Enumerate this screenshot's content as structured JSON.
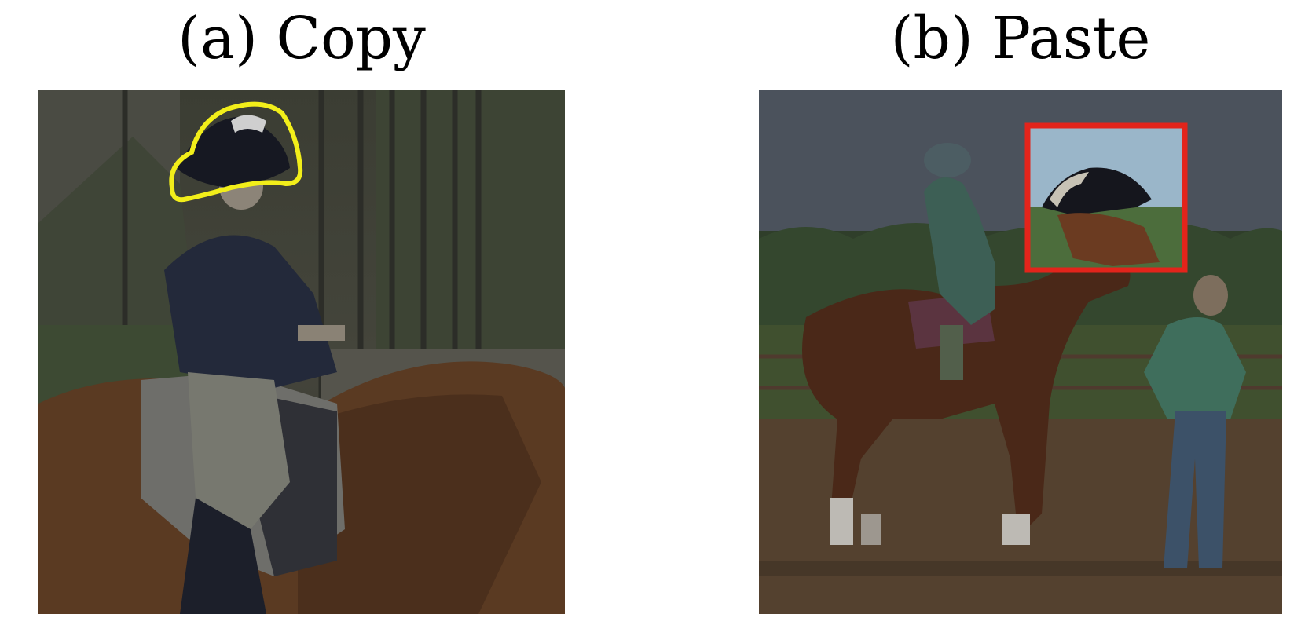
{
  "figure": {
    "panels": [
      {
        "title": "(a) Copy",
        "image_description_icon": "horse-rider-photo-icon",
        "highlight": {
          "kind": "outline",
          "color": "#f2ee1a",
          "target": "helmet"
        }
      },
      {
        "title": "(b) Paste",
        "image_description_icon": "horse-rider-photo-icon",
        "highlight": {
          "kind": "box",
          "color": "#e3241b",
          "target": "pasted-patch"
        }
      }
    ]
  }
}
